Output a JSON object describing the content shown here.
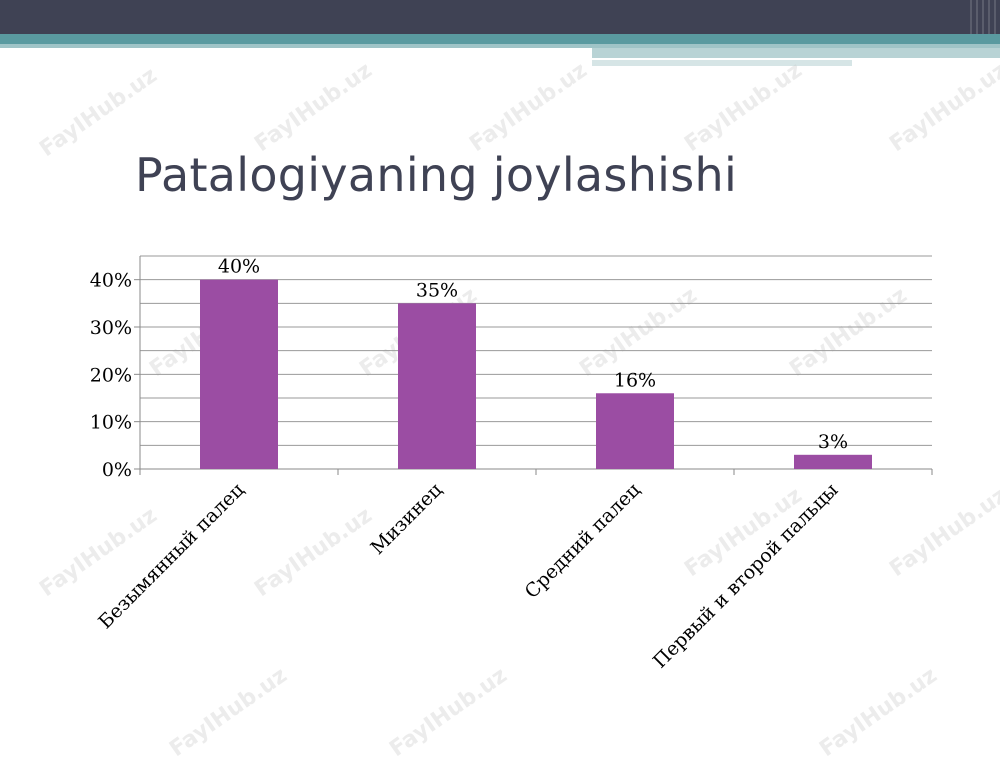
{
  "slide": {
    "title": "Patalogiyaning joylashishi",
    "watermark": "FayIHub.uz"
  },
  "chart_data": {
    "type": "bar",
    "categories": [
      "Безымянный палец",
      "Мизинец",
      "Средний палец",
      "Первый и второй пальцы"
    ],
    "values": [
      40,
      35,
      16,
      3
    ],
    "data_labels": [
      "40%",
      "35%",
      "16%",
      "3%"
    ],
    "y_ticks": [
      0,
      10,
      20,
      30,
      40
    ],
    "y_tick_labels": [
      "0%",
      "10%",
      "20%",
      "30%",
      "40%"
    ],
    "ylim": [
      0,
      45
    ],
    "grid": true,
    "bar_color": "#9b4da3",
    "grid_color": "#9a9a9a"
  }
}
